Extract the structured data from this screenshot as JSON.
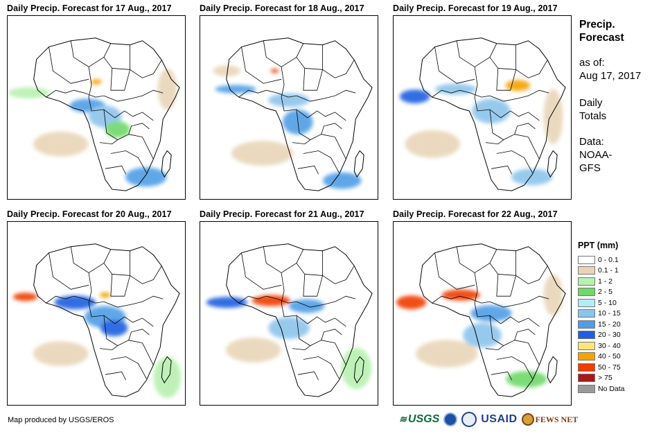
{
  "panels": [
    {
      "title": "Daily Precip. Forecast for 17 Aug., 2017"
    },
    {
      "title": "Daily Precip. Forecast for 18 Aug., 2017"
    },
    {
      "title": "Daily Precip. Forecast for 19 Aug., 2017"
    },
    {
      "title": "Daily Precip. Forecast for 20 Aug., 2017"
    },
    {
      "title": "Daily Precip. Forecast for 21 Aug., 2017"
    },
    {
      "title": "Daily Precip. Forecast for 22 Aug., 2017"
    }
  ],
  "side": {
    "title_line1": "Precip.",
    "title_line2": "Forecast",
    "asof_label": "as of:",
    "asof_date": "Aug 17, 2017",
    "totals_line1": "Daily",
    "totals_line2": "Totals",
    "data_line1": "Data:",
    "data_line2": "NOAA-",
    "data_line3": "GFS"
  },
  "legend": {
    "title": "PPT (mm)",
    "items": [
      {
        "label": "0 - 0.1",
        "color": "#ffffff"
      },
      {
        "label": "0.1 - 1",
        "color": "#e8d5b7"
      },
      {
        "label": "1 - 2",
        "color": "#b8f0b0"
      },
      {
        "label": "2 - 5",
        "color": "#6fd86a"
      },
      {
        "label": "5 - 10",
        "color": "#b3ecf8"
      },
      {
        "label": "10 - 15",
        "color": "#8cc4ec"
      },
      {
        "label": "15 - 20",
        "color": "#4f9ee6"
      },
      {
        "label": "20 - 30",
        "color": "#1f5fe0"
      },
      {
        "label": "30 - 40",
        "color": "#fce47a"
      },
      {
        "label": "40 - 50",
        "color": "#f5a300"
      },
      {
        "label": "50 - 75",
        "color": "#f03c00"
      },
      {
        "label": "> 75",
        "color": "#a81818"
      },
      {
        "label": "No Data",
        "color": "#999999"
      }
    ]
  },
  "credit": "Map produced by USGS/EROS",
  "logos": {
    "usgs": "USGS",
    "usaid": "USAID",
    "fews": "FEWS NET"
  }
}
